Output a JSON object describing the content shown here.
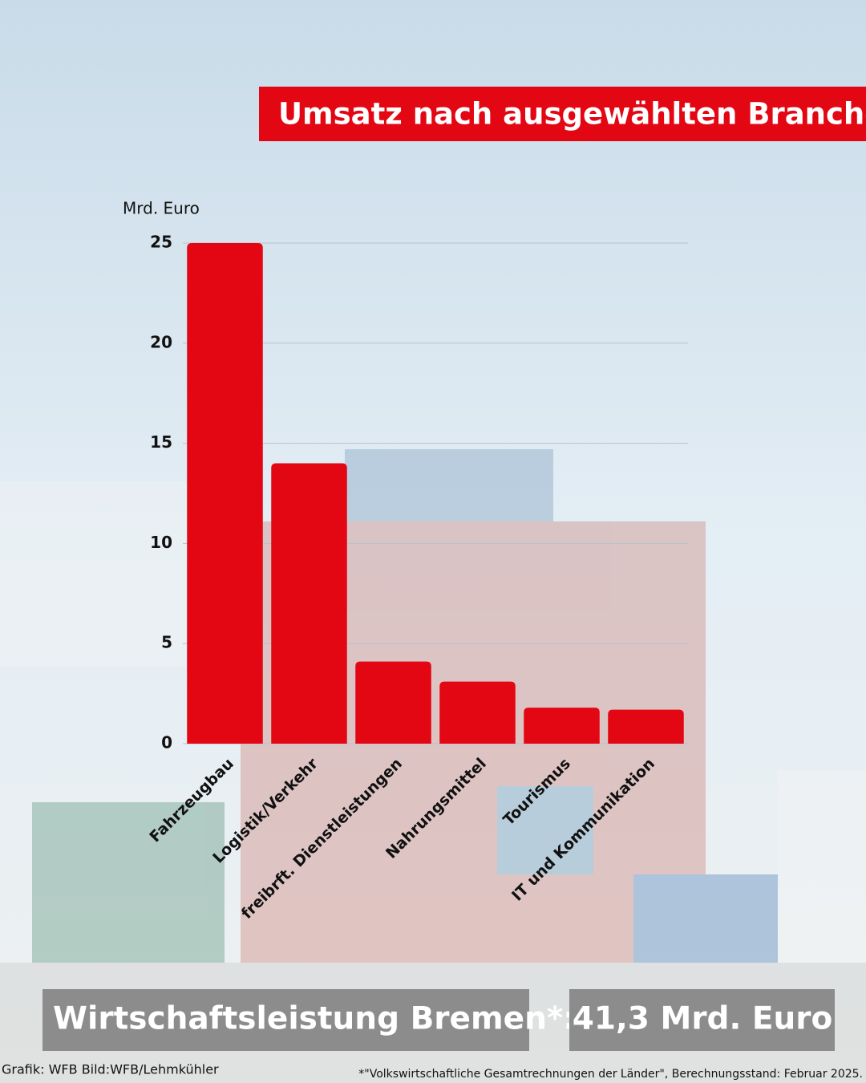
{
  "chart_data": {
    "type": "bar",
    "title": "Umsatz nach ausgewählten Branchen",
    "y_label": "Mrd. Euro",
    "categories": [
      "Fahrzeugbau",
      "Logistik/Verkehr",
      "freibrft. Dienstleistungen",
      "Nahrungsmittel",
      "Tourismus",
      "IT und Kommunikation"
    ],
    "values": [
      25,
      14,
      4.1,
      3.1,
      1.8,
      1.7
    ],
    "color": "#e30613",
    "ylim": [
      0,
      25
    ],
    "yticks": [
      0,
      5,
      10,
      15,
      20,
      25
    ],
    "grid": true
  },
  "summary": {
    "label": "Wirtschaftsleistung Bremen*:",
    "value": "41,3 Mrd. Euro"
  },
  "credit": "Grafik: WFB Bild:WFB/Lehmkühler",
  "footnote": "*\"Volkswirtschaftliche Gesamtrechnungen der Länder\", Berechnungsstand: Februar 2025."
}
